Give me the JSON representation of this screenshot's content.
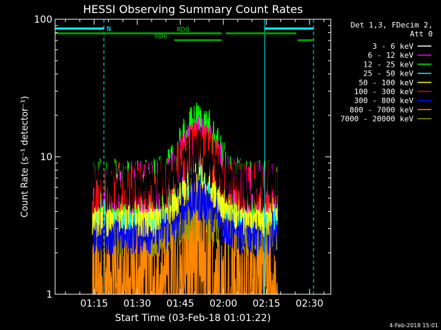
{
  "chart_data": {
    "type": "line",
    "title": "HESSI Observing Summary Count Rates",
    "xlabel": "Start Time (03-Feb-18 01:01:22)",
    "ylabel": "Count Rate (s⁻¹ detector⁻¹)",
    "yscale": "log",
    "ylim": [
      1,
      100
    ],
    "xlim_minutes": [
      0,
      96
    ],
    "x_ticks": [
      {
        "label": "01:15",
        "minute": 13.6
      },
      {
        "label": "01:30",
        "minute": 28.6
      },
      {
        "label": "01:45",
        "minute": 43.6
      },
      {
        "label": "02:00",
        "minute": 58.6
      },
      {
        "label": "02:15",
        "minute": 73.6
      },
      {
        "label": "02:30",
        "minute": 88.6
      }
    ],
    "y_ticks": [
      {
        "label": "1",
        "value": 1
      },
      {
        "label": "10",
        "value": 10
      },
      {
        "label": "100",
        "value": 100
      }
    ],
    "data_window_minutes": [
      13,
      77.5
    ],
    "peak_minute": 50,
    "legend_header": [
      "Det 1,3, FDecim 2,",
      "Att 0"
    ],
    "series": [
      {
        "name": "3 - 6 keV",
        "color": "#000000",
        "base": 6.5,
        "peak": 10.5,
        "noise": 0.22
      },
      {
        "name": "6 - 12 keV",
        "color": "#ff00ff",
        "base": 6.0,
        "peak": 13.0,
        "noise": 0.2
      },
      {
        "name": "12 - 25 keV",
        "color": "#00ff00",
        "base": 6.0,
        "peak": 16.0,
        "noise": 0.22
      },
      {
        "name": "25 - 50 keV",
        "color": "#00ffff",
        "base": 4.5,
        "peak": 9.0,
        "noise": 0.2
      },
      {
        "name": "50 - 100 keV",
        "color": "#ffff00",
        "base": 4.5,
        "peak": 9.5,
        "noise": 0.25
      },
      {
        "name": "100 - 300 keV",
        "color": "#ff0000",
        "base": 6.0,
        "peak": 12.5,
        "noise": 0.2
      },
      {
        "name": "300 - 800 keV",
        "color": "#0000ff",
        "base": 3.0,
        "peak": 5.2,
        "noise": 0.2
      },
      {
        "name": "800 - 7000 keV",
        "color": "#ff8800",
        "base": 1.6,
        "peak": 2.8,
        "noise": 0.45
      },
      {
        "name": "7000 - 20000 keV",
        "color": "#999900",
        "base": 3.2,
        "peak": 4.2,
        "noise": 0.25
      }
    ],
    "annotations": {
      "night_bars": [
        {
          "start": 0,
          "end": 17,
          "label": "N"
        },
        {
          "start": 73,
          "end": 90,
          "label": ""
        }
      ],
      "saa_markers": [],
      "decimation_bars": [
        {
          "start": 0,
          "end": 58,
          "row": 1,
          "label": "RD0"
        },
        {
          "start": 59.5,
          "end": 84,
          "row": 1,
          "label": ""
        },
        {
          "start": 41.5,
          "end": 58,
          "row": 2,
          "label": "RD6"
        },
        {
          "start": 84.5,
          "end": 90,
          "row": 2,
          "label": ""
        }
      ],
      "vertical_lines": [
        {
          "minute": 0,
          "style": "solid"
        },
        {
          "minute": 17,
          "style": "dashed"
        },
        {
          "minute": 73,
          "style": "solid"
        },
        {
          "minute": 90,
          "style": "dashed"
        }
      ]
    }
  },
  "footer": {
    "date_stamp": "4-Feb-2018 15:01"
  }
}
